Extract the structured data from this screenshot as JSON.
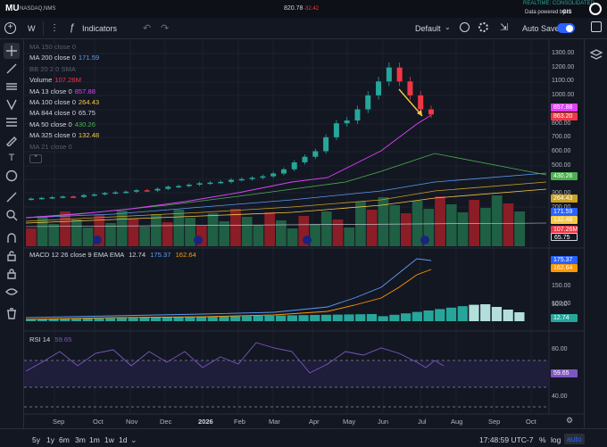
{
  "header": {
    "ticker": "MU",
    "exchange": "NASDAQ,NMS",
    "price": "820.78",
    "change": "-32.42",
    "realtime": "REALTIME: CONSOLIDATED",
    "powered": "Data powered by",
    "powered_brand": "GIS"
  },
  "toolbar": {
    "interval": "W",
    "indicators": "Indicators",
    "layout": "Default",
    "auto_save": "Auto Save"
  },
  "legend": [
    {
      "label": "MA 150 close 0",
      "value": "",
      "color": "#6b6f7b",
      "dim": true
    },
    {
      "label": "MA 200 close 0",
      "value": "171.59",
      "color": "#5b9cf6",
      "dim": false
    },
    {
      "label": "BB 20 2 0 SMA",
      "value": "",
      "color": "#6b6f7b",
      "dim": true
    },
    {
      "label": "Volume",
      "value": "107.26M",
      "color": "#f23645",
      "dim": false
    },
    {
      "label": "MA 13 close 0",
      "value": "857.88",
      "color": "#e040fb",
      "dim": false
    },
    {
      "label": "MA 100 close 0",
      "value": "264.43",
      "color": "#f7c948",
      "dim": false
    },
    {
      "label": "MA 844 close 0",
      "value": "65.75",
      "color": "#d1d4dc",
      "dim": false
    },
    {
      "label": "MA 50 close 0",
      "value": "430.26",
      "color": "#4caf50",
      "dim": false
    },
    {
      "label": "MA 325 close 0",
      "value": "132.48",
      "color": "#f7c948",
      "dim": false
    },
    {
      "label": "MA 21 close 0",
      "value": "",
      "color": "#6b6f7b",
      "dim": true
    }
  ],
  "price_axis": [
    "1300.00",
    "1200.00",
    "1100.00",
    "1000.00",
    "900.00",
    "800.00",
    "700.00",
    "600.00",
    "500.00",
    "400.00",
    "300.00",
    "200.00"
  ],
  "price_tags": [
    {
      "text": "857.88",
      "color": "#e040fb"
    },
    {
      "text": "863.20",
      "color": "#f23645"
    },
    {
      "text": "430.26",
      "color": "#4caf50"
    },
    {
      "text": "264.43",
      "color": "#c9a227"
    },
    {
      "text": "171.59",
      "color": "#2962ff"
    },
    {
      "text": "132.48",
      "color": "#f7c948"
    },
    {
      "text": "107.26M",
      "color": "#f23645"
    },
    {
      "text": "65.75",
      "color": "#131722"
    }
  ],
  "macd": {
    "label": "MACD 12 26 close 9 EMA EMA",
    "v1": "12.74",
    "v1_color": "#d1d4dc",
    "v2": "175.37",
    "v2_color": "#5b9cf6",
    "v3": "162.64",
    "v3_color": "#ff9800",
    "axis": [
      "150.00",
      "100.00",
      "50.00"
    ],
    "tags": [
      {
        "text": "175.37",
        "color": "#2962ff"
      },
      {
        "text": "162.64",
        "color": "#ff9800"
      },
      {
        "text": "12.74",
        "color": "#26a69a"
      }
    ]
  },
  "rsi": {
    "label": "RSI 14",
    "value": "59.65",
    "axis": [
      "80.00",
      "40.00"
    ],
    "tag": "59.65",
    "tag_color": "#7e57c2"
  },
  "months": [
    "Sep",
    "Oct",
    "Nov",
    "Dec",
    "2026",
    "Feb",
    "Mar",
    "Apr",
    "May",
    "Jun",
    "Jul",
    "Aug",
    "Sep",
    "Oct"
  ],
  "bottom": {
    "ranges": [
      "5y",
      "1y",
      "6m",
      "3m",
      "1m",
      "1w",
      "1d"
    ],
    "time": "17:48:59 UTC-7",
    "pct": "%",
    "log": "log",
    "auto": "auto"
  },
  "chart_data": {
    "type": "candlestick",
    "interval": "weekly",
    "ylim": [
      200,
      1300
    ],
    "candles_close_approx": [
      260,
      265,
      270,
      275,
      272,
      285,
      290,
      300,
      305,
      310,
      320,
      318,
      330,
      345,
      350,
      360,
      370,
      375,
      380,
      395,
      400,
      410,
      420,
      440,
      470,
      520,
      560,
      600,
      700,
      800,
      820,
      900,
      1000,
      1100,
      1200,
      1100,
      1000,
      900,
      863
    ],
    "note_arrow": "downward arrow annotation near latest candles"
  }
}
